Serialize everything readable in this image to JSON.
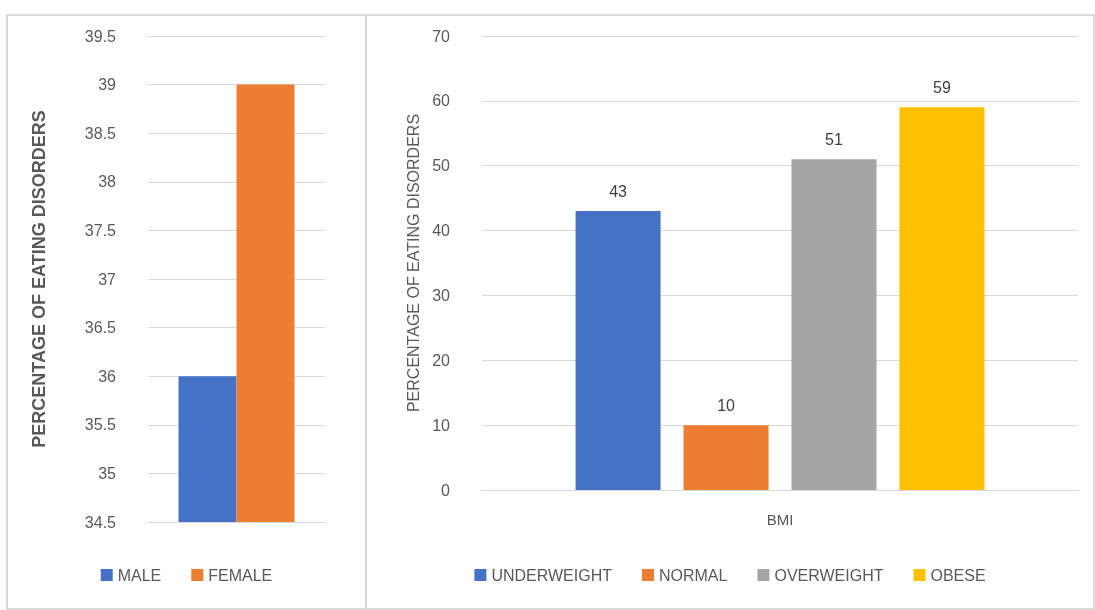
{
  "chart_data": [
    {
      "type": "bar",
      "ylabel": "PERCENTAGE OF EATING DISORDERS",
      "categories": [
        null
      ],
      "series": [
        {
          "name": "MALE",
          "color": "#4472c4",
          "values": [
            36
          ]
        },
        {
          "name": "FEMALE",
          "color": "#ed7d31",
          "values": [
            39
          ]
        }
      ],
      "ylim": [
        34.5,
        39.5
      ],
      "yticks": [
        34.5,
        35,
        35.5,
        36,
        36.5,
        37,
        37.5,
        38,
        38.5,
        39,
        39.5
      ],
      "grid": "y",
      "legend": "bottom"
    },
    {
      "type": "bar",
      "ylabel": "PERCENTAGE OF EATING DISORDERS",
      "categories": [
        "BMI"
      ],
      "series": [
        {
          "name": "UNDERWEIGHT",
          "color": "#4472c4",
          "values": [
            43
          ]
        },
        {
          "name": "NORMAL",
          "color": "#ed7d31",
          "values": [
            10
          ]
        },
        {
          "name": "OVERWEIGHT",
          "color": "#a5a5a5",
          "values": [
            51
          ]
        },
        {
          "name": "OBESE",
          "color": "#ffc000",
          "values": [
            59
          ]
        }
      ],
      "ylim": [
        0,
        70
      ],
      "yticks": [
        0,
        10,
        20,
        30,
        40,
        50,
        60,
        70
      ],
      "grid": "y",
      "legend": "bottom",
      "data_labels": true
    }
  ]
}
